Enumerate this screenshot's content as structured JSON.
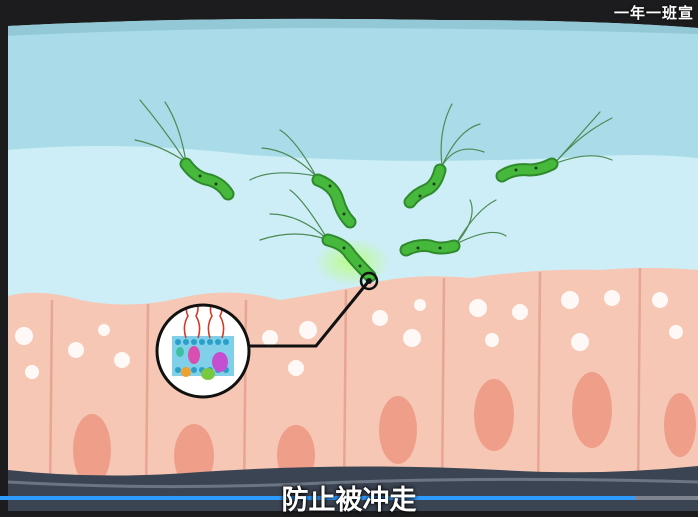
{
  "watermark": "一年一班宣",
  "subtitle": "防止被冲走",
  "video": {
    "progress_percent": 91
  },
  "colors": {
    "mucus_dark": "#a9dce8",
    "mucus_light": "#cdeef6",
    "cell": "#f6c7b4",
    "nucleus": "#ef9e8a",
    "bacteria": "#46b93c",
    "progress": "#2e9bff"
  },
  "icons": {
    "bacterium": "helicobacter-pylori-illustration",
    "zoom_lens": "cell-membrane-magnifier"
  }
}
